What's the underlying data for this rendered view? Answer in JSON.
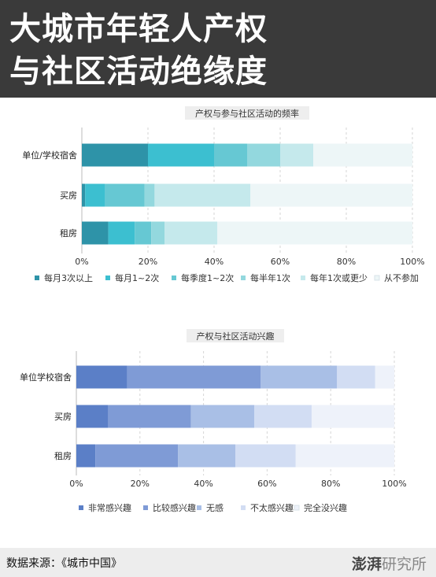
{
  "headline": {
    "line1": "大城市年轻人产权",
    "line2": "与社区活动绝缘度"
  },
  "footer": {
    "source": "数据来源：《城市中国》",
    "brand_bold": "澎湃",
    "brand_light": "研究所"
  },
  "chart_data": [
    {
      "type": "bar",
      "orientation": "horizontal",
      "stacked": true,
      "title": "产权与参与社区活动的频率",
      "categories": [
        "单位/学校宿舍",
        "买房",
        "租房"
      ],
      "xlim": [
        0,
        100
      ],
      "ticks": [
        "0%",
        "20%",
        "40%",
        "60%",
        "80%",
        "100%"
      ],
      "legend_position": "bottom",
      "series": [
        {
          "name": "每月3次以上",
          "values": [
            20,
            1,
            8
          ],
          "color": "#2e93a8"
        },
        {
          "name": "每月1~2次",
          "values": [
            20,
            6,
            8
          ],
          "color": "#3cbfd0"
        },
        {
          "name": "每季度1~2次",
          "values": [
            10,
            12,
            5
          ],
          "color": "#66c8d3"
        },
        {
          "name": "每半年1次",
          "values": [
            10,
            3,
            4
          ],
          "color": "#93d8de"
        },
        {
          "name": "每年1次或更少",
          "values": [
            10,
            29,
            16
          ],
          "color": "#c5e9ec"
        },
        {
          "name": "从不参加",
          "values": [
            30,
            49,
            59
          ],
          "color": "#edf6f7"
        }
      ]
    },
    {
      "type": "bar",
      "orientation": "horizontal",
      "stacked": true,
      "title": "产权与社区活动兴趣",
      "categories": [
        "单位学校宿舍",
        "买房",
        "租房"
      ],
      "xlim": [
        0,
        100
      ],
      "ticks": [
        "0%",
        "20%",
        "40%",
        "60%",
        "80%",
        "100%"
      ],
      "legend_position": "bottom",
      "series": [
        {
          "name": "非常感兴趣",
          "values": [
            16,
            10,
            6
          ],
          "color": "#5b7fc7"
        },
        {
          "name": "比较感兴趣",
          "values": [
            42,
            26,
            26
          ],
          "color": "#7f9bd6"
        },
        {
          "name": "无感",
          "values": [
            24,
            20,
            18
          ],
          "color": "#a9bfe6"
        },
        {
          "name": "不太感兴趣",
          "values": [
            12,
            18,
            19
          ],
          "color": "#d2ddf3"
        },
        {
          "name": "完全没兴趣",
          "values": [
            6,
            26,
            31
          ],
          "color": "#eef2fa"
        }
      ]
    }
  ]
}
